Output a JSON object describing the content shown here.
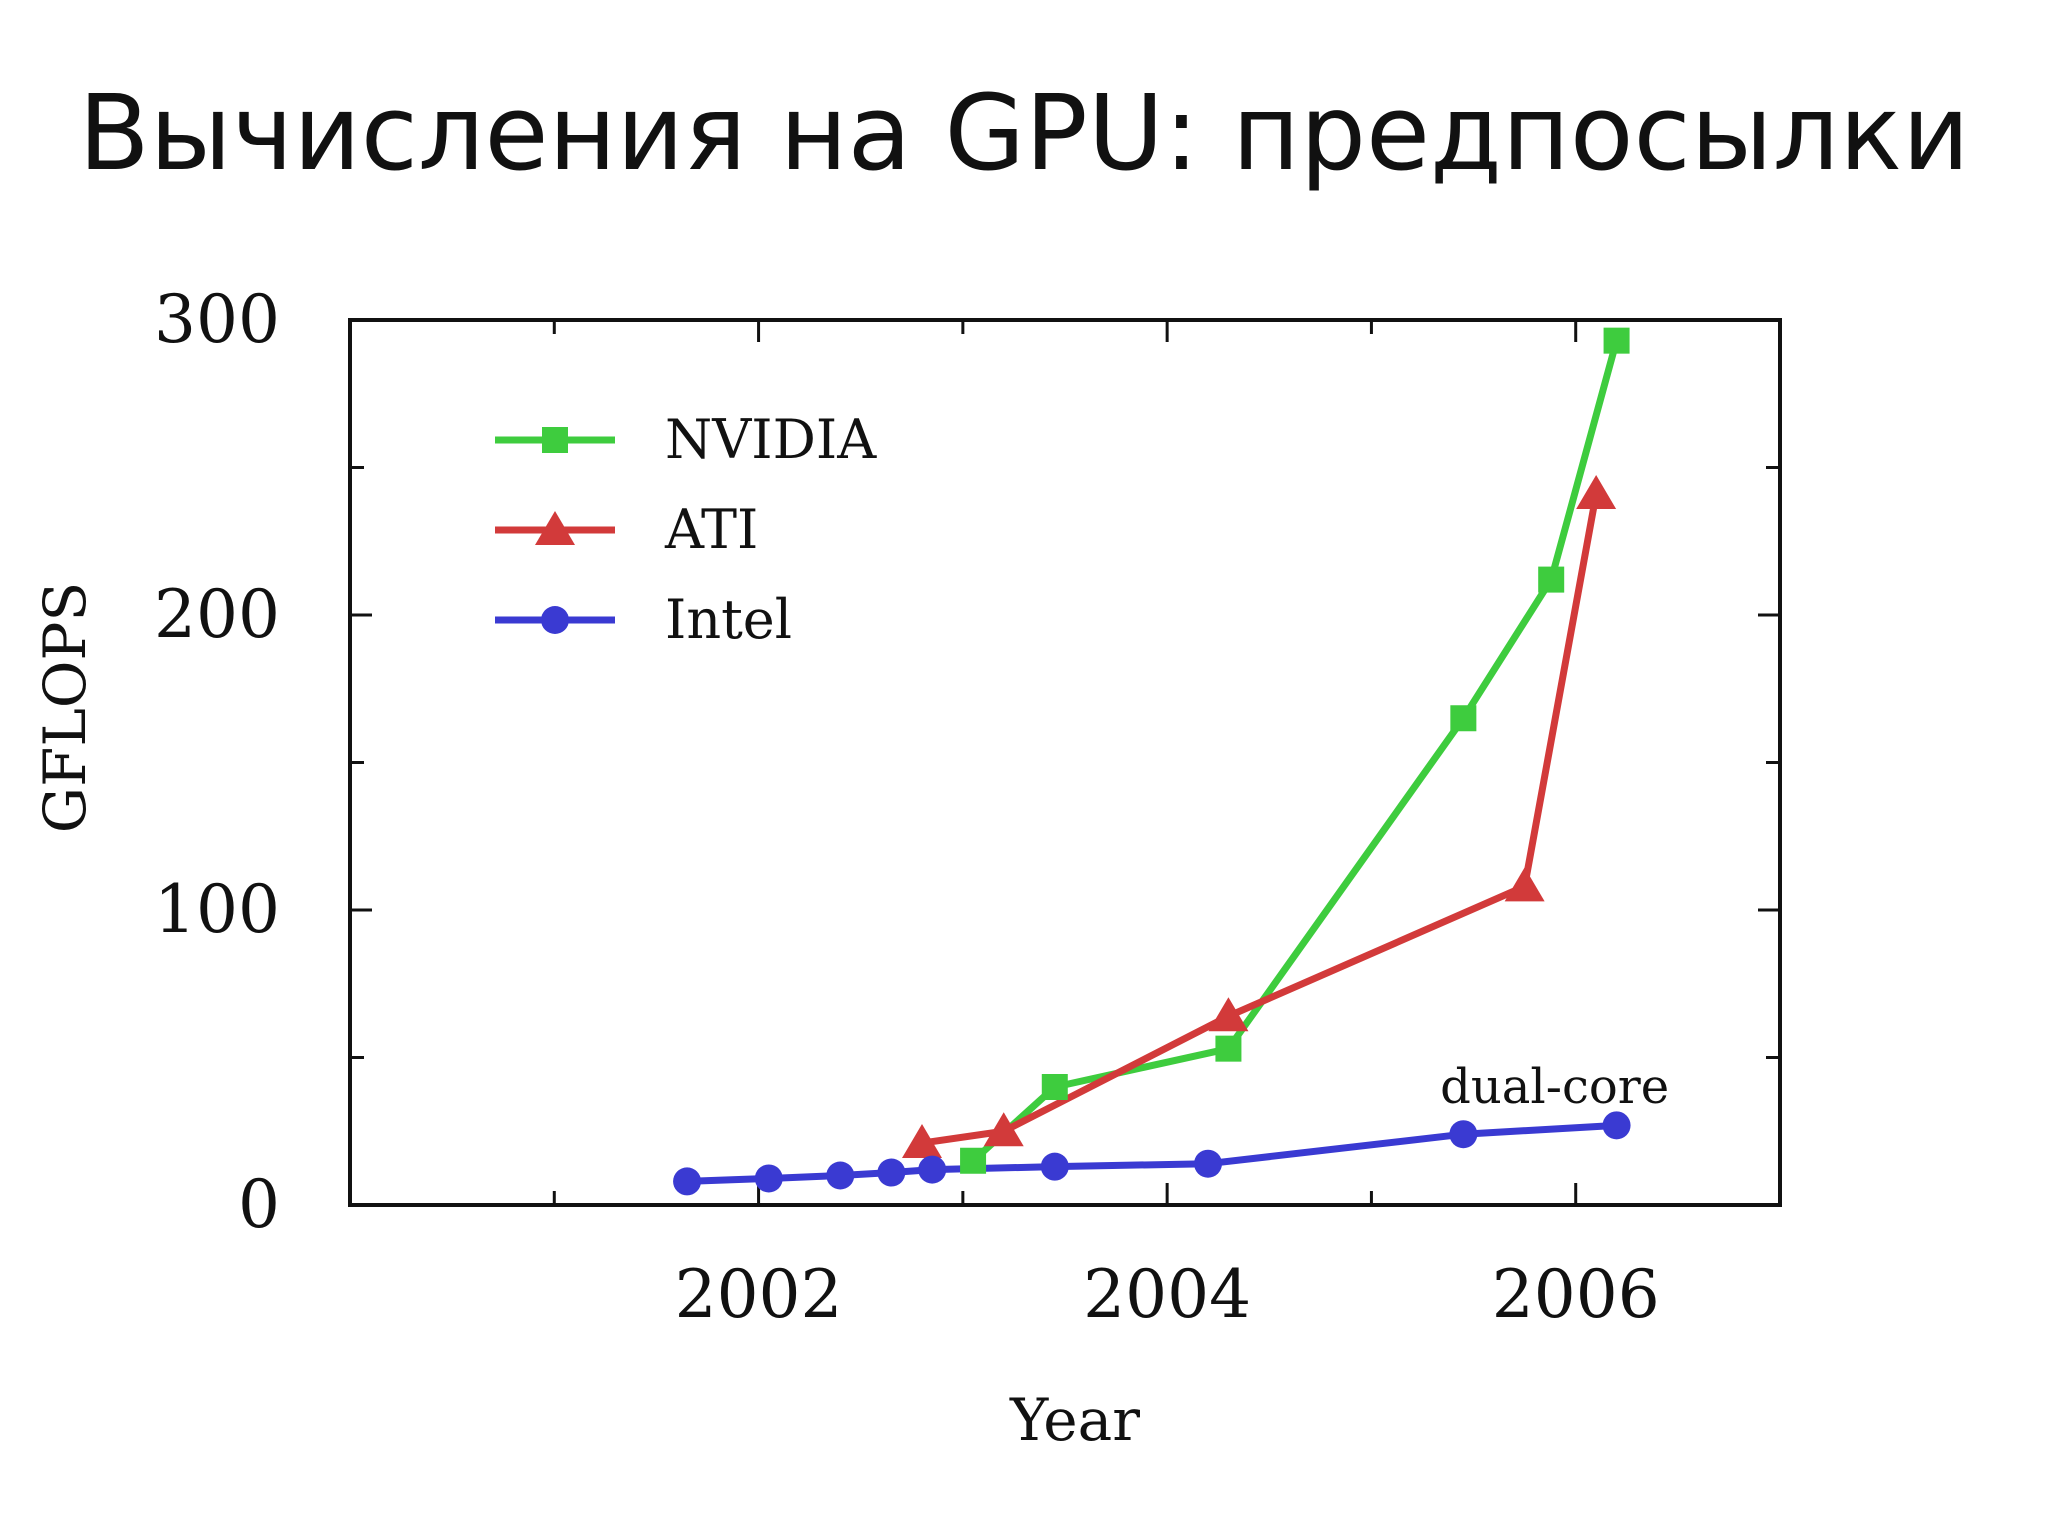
{
  "slide": {
    "title": "Вычисления на GPU: предпосылки"
  },
  "chart_data": {
    "type": "line",
    "xlabel": "Year",
    "ylabel": "GFLOPS",
    "xlim": [
      2000.0,
      2007.0
    ],
    "ylim": [
      0,
      300
    ],
    "x_ticks": [
      2002,
      2004,
      2006
    ],
    "y_ticks": [
      0,
      100,
      200,
      300
    ],
    "grid": false,
    "legend_position": "top-left",
    "series": [
      {
        "name": "NVIDIA",
        "color": "#3ecc3e",
        "marker": "square",
        "x": [
          2003.05,
          2003.45,
          2004.3,
          2005.45,
          2005.88,
          2006.2
        ],
        "y": [
          15,
          40,
          53,
          165,
          212,
          293
        ]
      },
      {
        "name": "ATI",
        "color": "#d23a3a",
        "marker": "triangle",
        "x": [
          2002.8,
          2003.2,
          2004.3,
          2005.75,
          2006.1
        ],
        "y": [
          21,
          25,
          64,
          108,
          241
        ]
      },
      {
        "name": "Intel",
        "color": "#3a3ad2",
        "marker": "circle",
        "x": [
          2001.65,
          2002.05,
          2002.4,
          2002.65,
          2002.85,
          2003.45,
          2004.2,
          2005.45,
          2006.2
        ],
        "y": [
          8,
          9,
          10,
          11,
          12,
          13,
          14,
          24,
          27
        ]
      }
    ],
    "annotations": [
      {
        "text": "dual-core",
        "x": 2005.75,
        "y": 40
      }
    ]
  }
}
